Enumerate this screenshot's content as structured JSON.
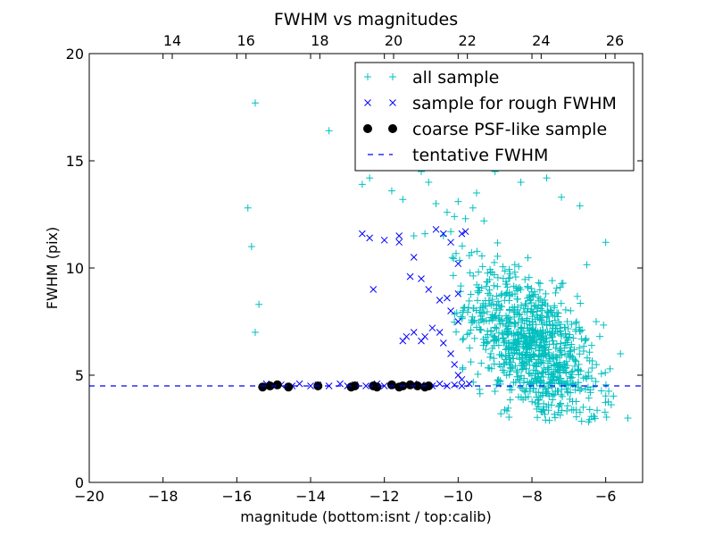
{
  "chart_data": {
    "type": "scatter",
    "title": "FWHM vs magnitudes",
    "xlabel": "magnitude (bottom:isnt / top:calib)",
    "ylabel": "FWHM (pix)",
    "xlim": [
      -20,
      -5
    ],
    "ylim": [
      0,
      20
    ],
    "x_ticks": [
      -20,
      -18,
      -16,
      -14,
      -12,
      -10,
      -8,
      -6
    ],
    "x_tick_labels": [
      "−20",
      "−18",
      "−16",
      "−14",
      "−12",
      "−10",
      "−8",
      "−6"
    ],
    "y_ticks": [
      0,
      5,
      10,
      15,
      20
    ],
    "y_tick_labels": [
      "0",
      "5",
      "10",
      "15",
      "20"
    ],
    "top_axis": {
      "offset": 31.75,
      "ticks": [
        14,
        16,
        18,
        20,
        22,
        24,
        26
      ],
      "tick_labels": [
        "14",
        "16",
        "18",
        "20",
        "22",
        "24",
        "26"
      ]
    },
    "grid": false,
    "legend_position": "top-right",
    "series": [
      {
        "name": "all sample",
        "marker": "plus",
        "color": "#00bfbf",
        "x": [
          -15.5,
          -15.7,
          -15.6,
          -15.4,
          -15.5,
          -13.5,
          -12.6,
          -12.4,
          -11.8,
          -11.5,
          -11.0,
          -10.8,
          -10.6,
          -10.3,
          -10.1,
          -10.0,
          -9.8,
          -9.6,
          -9.5,
          -9.3,
          -9.0,
          -8.7,
          -8.3,
          -8.0,
          -7.6,
          -7.2,
          -6.7,
          -6.0,
          -5.6,
          -5.4,
          -11.2,
          -10.9,
          -10.4,
          -10.2
        ],
        "y": [
          17.7,
          12.8,
          11.0,
          8.3,
          7.0,
          16.4,
          13.9,
          14.2,
          13.6,
          13.2,
          14.5,
          14.0,
          13.0,
          12.6,
          12.4,
          13.1,
          12.3,
          12.8,
          13.5,
          12.2,
          14.5,
          15.0,
          14.0,
          15.2,
          14.2,
          13.3,
          12.9,
          11.2,
          6.0,
          3.0,
          11.5,
          11.6,
          11.5,
          11.7
        ],
        "cloud": {
          "n": 1000,
          "x_mean": -8.0,
          "x_sd": 0.9,
          "y_mean": 6.3,
          "y_sd": 1.6,
          "slope": -1.1,
          "x_range": [
            -10.2,
            -5.4
          ],
          "y_range": [
            2.8,
            14.8
          ]
        }
      },
      {
        "name": "sample for rough FWHM",
        "marker": "x",
        "color": "#0000ff",
        "x": [
          -15.2,
          -15.0,
          -14.8,
          -14.5,
          -14.3,
          -14.0,
          -13.8,
          -13.5,
          -13.2,
          -13.0,
          -12.8,
          -12.5,
          -12.2,
          -12.0,
          -11.8,
          -11.5,
          -11.2,
          -11.0,
          -10.7,
          -10.5,
          -10.3,
          -10.1,
          -9.9,
          -9.7,
          -12.6,
          -12.4,
          -12.0,
          -11.6,
          -11.3,
          -11.0,
          -10.8,
          -10.5,
          -10.2,
          -10.0,
          -11.5,
          -11.4,
          -11.2,
          -11.0,
          -10.9,
          -10.7,
          -10.5,
          -10.4,
          -10.2,
          -10.1,
          -10.0,
          -9.9,
          -12.3,
          -11.6,
          -11.2,
          -10.6,
          -10.4,
          -10.2,
          -10.0,
          -9.9,
          -9.8,
          -10.3,
          -10.0
        ],
        "y": [
          4.6,
          4.5,
          4.55,
          4.5,
          4.6,
          4.5,
          4.55,
          4.5,
          4.6,
          4.5,
          4.55,
          4.5,
          4.6,
          4.5,
          4.55,
          4.5,
          4.6,
          4.55,
          4.5,
          4.6,
          4.5,
          4.55,
          4.5,
          4.6,
          11.6,
          11.4,
          11.3,
          11.5,
          9.6,
          9.5,
          9.0,
          8.5,
          8.0,
          7.5,
          6.6,
          6.8,
          7.0,
          6.6,
          6.8,
          7.2,
          7.0,
          6.5,
          6.0,
          5.5,
          5.0,
          4.8,
          9.0,
          11.2,
          10.5,
          11.8,
          11.6,
          11.2,
          10.2,
          11.6,
          11.7,
          8.6,
          8.8
        ]
      },
      {
        "name": "coarse PSF-like sample",
        "marker": "circle",
        "color": "#000000",
        "x": [
          -15.3,
          -15.1,
          -14.9,
          -14.6,
          -13.8,
          -12.9,
          -12.8,
          -12.3,
          -12.2,
          -11.8,
          -11.6,
          -11.5,
          -11.3,
          -11.1,
          -10.9,
          -10.8
        ],
        "y": [
          4.45,
          4.5,
          4.55,
          4.45,
          4.5,
          4.45,
          4.5,
          4.5,
          4.45,
          4.55,
          4.45,
          4.5,
          4.55,
          4.5,
          4.45,
          4.5
        ]
      },
      {
        "name": "tentative FWHM",
        "marker": "dashed-line",
        "color": "#0000ff",
        "y": 4.5
      }
    ]
  }
}
